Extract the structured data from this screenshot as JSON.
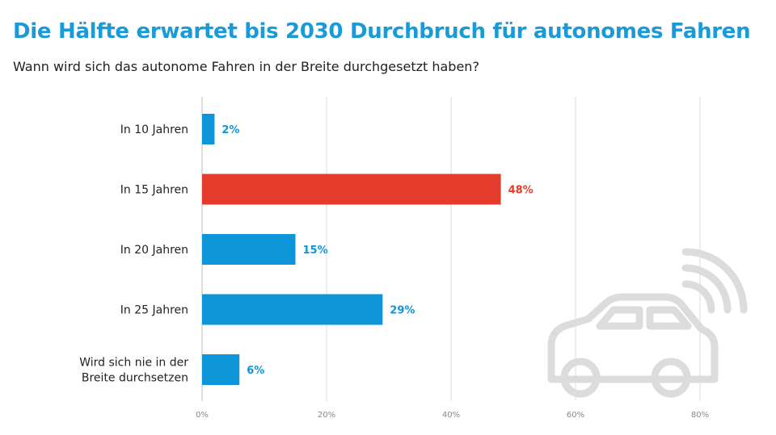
{
  "title": "Die Hälfte erwartet bis 2030 Durchbruch für autonomes Fahren",
  "subtitle": "Wann wird sich das autonome Fahren in der Breite durchgesetzt haben?",
  "colors": {
    "title": "#1a9ad6",
    "bar": "#0d95d8",
    "highlight": "#e43c2c",
    "grid": "#dddddd",
    "icon": "#dcdcdc"
  },
  "icons": [
    "connected-car-icon"
  ],
  "chart_data": {
    "type": "bar",
    "orientation": "horizontal",
    "categories": [
      [
        "In 10 Jahren"
      ],
      [
        "In 15 Jahren"
      ],
      [
        "In 20 Jahren"
      ],
      [
        "In 25 Jahren"
      ],
      [
        "Wird sich nie in der",
        "Breite durchsetzen"
      ]
    ],
    "values": [
      2,
      48,
      15,
      29,
      6
    ],
    "value_labels": [
      "2%",
      "48%",
      "15%",
      "29%",
      "6%"
    ],
    "highlight_index": 1,
    "xlim": [
      0,
      80
    ],
    "xticks": [
      "0%",
      "20%",
      "40%",
      "60%",
      "80%"
    ],
    "grid": true
  }
}
